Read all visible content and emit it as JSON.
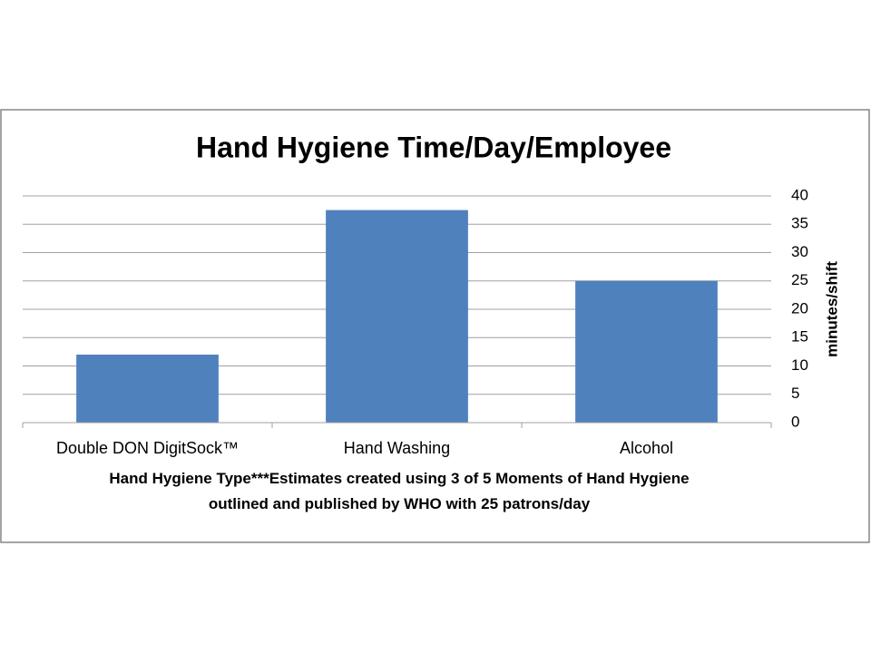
{
  "chart_data": {
    "type": "bar",
    "title": "Hand Hygiene Time/Day/Employee",
    "categories": [
      "Double DON DigitSock™",
      "Hand Washing",
      "Alcohol"
    ],
    "values": [
      12,
      37.5,
      25
    ],
    "color": "#4f81bd",
    "ylim": [
      0,
      40
    ],
    "yticks": [
      0,
      5,
      10,
      15,
      20,
      25,
      30,
      35,
      40
    ],
    "grid": true,
    "y_axis_side": "right",
    "ylabel": "minutes/shift",
    "xlabel": "Hand Hygiene Type***Estimates created using 3 of 5 Moments of Hand Hygiene outlined and published by WHO with 25 patrons/day"
  }
}
